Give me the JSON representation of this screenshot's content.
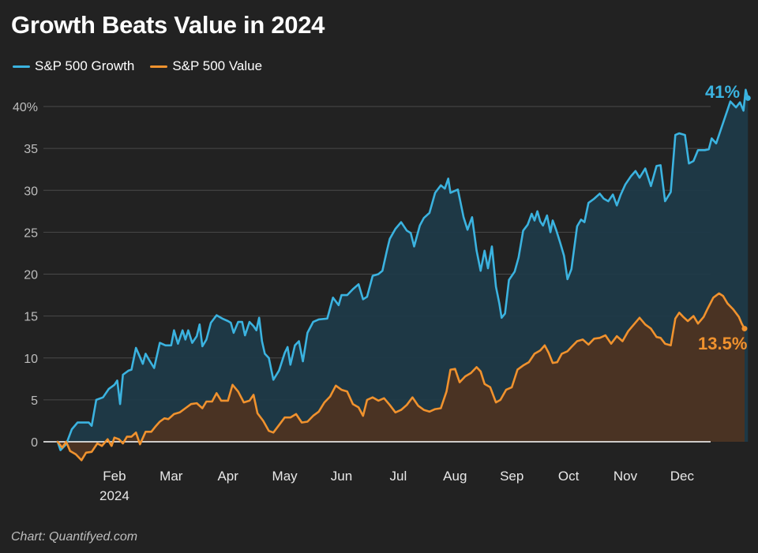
{
  "chart_data": {
    "type": "area",
    "title": "Growth Beats Value in 2024",
    "xlabel": "",
    "ylabel": "",
    "ylim": [
      0,
      40
    ],
    "y_ticks": [
      {
        "value": 0,
        "label": "0"
      },
      {
        "value": 5,
        "label": "5"
      },
      {
        "value": 10,
        "label": "10"
      },
      {
        "value": 15,
        "label": "15"
      },
      {
        "value": 20,
        "label": "20"
      },
      {
        "value": 25,
        "label": "25"
      },
      {
        "value": 30,
        "label": "30"
      },
      {
        "value": 35,
        "label": "35"
      },
      {
        "value": 40,
        "label": "40%"
      }
    ],
    "x_ticks": [
      {
        "month": 1,
        "label": "Feb",
        "sublabel": "2024"
      },
      {
        "month": 2,
        "label": "Mar"
      },
      {
        "month": 3,
        "label": "Apr"
      },
      {
        "month": 4,
        "label": "May"
      },
      {
        "month": 5,
        "label": "Jun"
      },
      {
        "month": 6,
        "label": "Jul"
      },
      {
        "month": 7,
        "label": "Aug"
      },
      {
        "month": 8,
        "label": "Sep"
      },
      {
        "month": 9,
        "label": "Oct"
      },
      {
        "month": 10,
        "label": "Nov"
      },
      {
        "month": 11,
        "label": "Dec"
      }
    ],
    "x_unit": "months since Jan 1, 2024",
    "xlim": [
      0,
      11.7
    ],
    "legend_position": "top-left",
    "series": [
      {
        "name": "S&P 500 Growth",
        "color": "#3bb3e0",
        "fill": "#1f3a48",
        "end_label": "41%",
        "points": [
          [
            0,
            0
          ],
          [
            0.05,
            -1
          ],
          [
            0.15,
            -0.3
          ],
          [
            0.25,
            1.5
          ],
          [
            0.35,
            2.3
          ],
          [
            0.55,
            2.3
          ],
          [
            0.6,
            1.9
          ],
          [
            0.68,
            5
          ],
          [
            0.8,
            5.3
          ],
          [
            0.9,
            6.3
          ],
          [
            1.0,
            6.8
          ],
          [
            1.05,
            7.3
          ],
          [
            1.1,
            4.5
          ],
          [
            1.15,
            8
          ],
          [
            1.25,
            8.5
          ],
          [
            1.3,
            8.6
          ],
          [
            1.38,
            11.2
          ],
          [
            1.45,
            10.1
          ],
          [
            1.5,
            9.3
          ],
          [
            1.55,
            10.5
          ],
          [
            1.6,
            9.9
          ],
          [
            1.7,
            8.8
          ],
          [
            1.8,
            11.8
          ],
          [
            1.9,
            11.5
          ],
          [
            2.0,
            11.5
          ],
          [
            2.05,
            13.3
          ],
          [
            2.12,
            11.7
          ],
          [
            2.2,
            13.3
          ],
          [
            2.25,
            12.2
          ],
          [
            2.3,
            13.3
          ],
          [
            2.37,
            11.8
          ],
          [
            2.45,
            12.6
          ],
          [
            2.5,
            14
          ],
          [
            2.55,
            11.4
          ],
          [
            2.62,
            12.2
          ],
          [
            2.7,
            14.2
          ],
          [
            2.8,
            15.1
          ],
          [
            2.9,
            14.7
          ],
          [
            3.0,
            14.4
          ],
          [
            3.05,
            14.2
          ],
          [
            3.1,
            13
          ],
          [
            3.18,
            14.3
          ],
          [
            3.25,
            14.3
          ],
          [
            3.3,
            12.7
          ],
          [
            3.38,
            14.3
          ],
          [
            3.45,
            13.8
          ],
          [
            3.5,
            13.3
          ],
          [
            3.55,
            14.8
          ],
          [
            3.6,
            12
          ],
          [
            3.65,
            10.5
          ],
          [
            3.72,
            10
          ],
          [
            3.8,
            7.4
          ],
          [
            3.9,
            8.5
          ],
          [
            4.0,
            10.6
          ],
          [
            4.05,
            11.3
          ],
          [
            4.1,
            9.2
          ],
          [
            4.18,
            11.5
          ],
          [
            4.25,
            12
          ],
          [
            4.32,
            9.6
          ],
          [
            4.4,
            13
          ],
          [
            4.5,
            14.3
          ],
          [
            4.6,
            14.6
          ],
          [
            4.75,
            14.7
          ],
          [
            4.85,
            17.2
          ],
          [
            4.95,
            16.3
          ],
          [
            5.0,
            17.5
          ],
          [
            5.1,
            17.5
          ],
          [
            5.2,
            18.2
          ],
          [
            5.3,
            18.8
          ],
          [
            5.38,
            17
          ],
          [
            5.45,
            17.3
          ],
          [
            5.55,
            19.8
          ],
          [
            5.65,
            20
          ],
          [
            5.72,
            20.4
          ],
          [
            5.8,
            22.8
          ],
          [
            5.85,
            24.2
          ],
          [
            5.95,
            25.4
          ],
          [
            6.05,
            26.2
          ],
          [
            6.15,
            25.2
          ],
          [
            6.22,
            24.9
          ],
          [
            6.28,
            23.3
          ],
          [
            6.38,
            25.8
          ],
          [
            6.45,
            26.7
          ],
          [
            6.55,
            27.3
          ],
          [
            6.65,
            29.7
          ],
          [
            6.75,
            30.6
          ],
          [
            6.82,
            30.2
          ],
          [
            6.88,
            31.4
          ],
          [
            6.92,
            29.7
          ],
          [
            7.05,
            30.1
          ],
          [
            7.15,
            26.8
          ],
          [
            7.22,
            25.3
          ],
          [
            7.3,
            26.8
          ],
          [
            7.38,
            22.8
          ],
          [
            7.45,
            20.4
          ],
          [
            7.52,
            22.8
          ],
          [
            7.58,
            20.7
          ],
          [
            7.65,
            23.3
          ],
          [
            7.72,
            18.5
          ],
          [
            7.78,
            16.5
          ],
          [
            7.82,
            14.8
          ],
          [
            7.88,
            15.3
          ],
          [
            7.95,
            19.3
          ],
          [
            8.05,
            20.3
          ],
          [
            8.12,
            22
          ],
          [
            8.2,
            25.2
          ],
          [
            8.28,
            25.9
          ],
          [
            8.35,
            27.2
          ],
          [
            8.4,
            26.4
          ],
          [
            8.45,
            27.5
          ],
          [
            8.5,
            26.3
          ],
          [
            8.55,
            25.8
          ],
          [
            8.62,
            27
          ],
          [
            8.68,
            25
          ],
          [
            8.72,
            26.4
          ],
          [
            8.78,
            25.3
          ],
          [
            8.85,
            23.8
          ],
          [
            8.92,
            22.2
          ],
          [
            8.98,
            19.4
          ],
          [
            9.05,
            20.6
          ],
          [
            9.15,
            25.7
          ],
          [
            9.22,
            26.5
          ],
          [
            9.28,
            26.2
          ],
          [
            9.35,
            28.5
          ],
          [
            9.45,
            29
          ],
          [
            9.55,
            29.6
          ],
          [
            9.62,
            29
          ],
          [
            9.7,
            28.7
          ],
          [
            9.78,
            29.5
          ],
          [
            9.85,
            28.2
          ],
          [
            9.92,
            29.5
          ],
          [
            10.0,
            30.7
          ],
          [
            10.1,
            31.7
          ],
          [
            10.18,
            32.3
          ],
          [
            10.25,
            31.5
          ],
          [
            10.35,
            32.6
          ],
          [
            10.45,
            30.5
          ],
          [
            10.55,
            32.9
          ],
          [
            10.62,
            33
          ],
          [
            10.7,
            28.7
          ],
          [
            10.8,
            29.8
          ],
          [
            10.88,
            36.6
          ],
          [
            10.95,
            36.8
          ],
          [
            11.05,
            36.6
          ],
          [
            11.12,
            33.2
          ],
          [
            11.2,
            33.5
          ],
          [
            11.28,
            34.8
          ],
          [
            11.4,
            34.8
          ],
          [
            11.47,
            34.9
          ],
          [
            11.52,
            36.2
          ],
          [
            11.6,
            35.6
          ],
          [
            11.7,
            37.6
          ],
          [
            11.8,
            39.6
          ],
          [
            11.85,
            40.6
          ],
          [
            11.95,
            39.9
          ],
          [
            12.02,
            40.5
          ],
          [
            12.08,
            39.5
          ],
          [
            12.12,
            42
          ],
          [
            12.16,
            41
          ]
        ]
      },
      {
        "name": "S&P 500 Value",
        "color": "#f0922e",
        "fill": "#4a3323",
        "end_label": "13.5%",
        "points": [
          [
            0,
            0
          ],
          [
            0.08,
            -0.7
          ],
          [
            0.15,
            0
          ],
          [
            0.22,
            -1.1
          ],
          [
            0.32,
            -1.5
          ],
          [
            0.42,
            -2.2
          ],
          [
            0.5,
            -1.3
          ],
          [
            0.6,
            -1.2
          ],
          [
            0.7,
            -0.2
          ],
          [
            0.78,
            -0.5
          ],
          [
            0.88,
            0.3
          ],
          [
            0.95,
            -0.5
          ],
          [
            1.0,
            0.5
          ],
          [
            1.08,
            0.3
          ],
          [
            1.15,
            -0.2
          ],
          [
            1.22,
            0.6
          ],
          [
            1.3,
            0.6
          ],
          [
            1.38,
            1.1
          ],
          [
            1.45,
            -0.3
          ],
          [
            1.55,
            1.2
          ],
          [
            1.65,
            1.2
          ],
          [
            1.72,
            1.8
          ],
          [
            1.8,
            2.4
          ],
          [
            1.88,
            2.8
          ],
          [
            1.95,
            2.7
          ],
          [
            2.05,
            3.3
          ],
          [
            2.15,
            3.5
          ],
          [
            2.25,
            4.0
          ],
          [
            2.35,
            4.5
          ],
          [
            2.45,
            4.6
          ],
          [
            2.55,
            4.0
          ],
          [
            2.62,
            4.8
          ],
          [
            2.72,
            4.8
          ],
          [
            2.8,
            5.8
          ],
          [
            2.88,
            4.9
          ],
          [
            3.0,
            4.9
          ],
          [
            3.08,
            6.8
          ],
          [
            3.18,
            6.0
          ],
          [
            3.28,
            4.7
          ],
          [
            3.38,
            4.9
          ],
          [
            3.45,
            5.6
          ],
          [
            3.52,
            3.4
          ],
          [
            3.62,
            2.5
          ],
          [
            3.72,
            1.3
          ],
          [
            3.8,
            1.1
          ],
          [
            3.9,
            2.0
          ],
          [
            4.0,
            2.9
          ],
          [
            4.1,
            2.9
          ],
          [
            4.2,
            3.3
          ],
          [
            4.3,
            2.3
          ],
          [
            4.4,
            2.4
          ],
          [
            4.5,
            3.1
          ],
          [
            4.6,
            3.6
          ],
          [
            4.7,
            4.7
          ],
          [
            4.8,
            5.4
          ],
          [
            4.9,
            6.7
          ],
          [
            5.0,
            6.2
          ],
          [
            5.1,
            6.0
          ],
          [
            5.2,
            4.5
          ],
          [
            5.3,
            4.1
          ],
          [
            5.38,
            3.1
          ],
          [
            5.45,
            5.0
          ],
          [
            5.55,
            5.3
          ],
          [
            5.65,
            4.9
          ],
          [
            5.75,
            5.2
          ],
          [
            5.85,
            4.4
          ],
          [
            5.95,
            3.5
          ],
          [
            6.05,
            3.8
          ],
          [
            6.15,
            4.4
          ],
          [
            6.25,
            5.3
          ],
          [
            6.35,
            4.3
          ],
          [
            6.45,
            3.8
          ],
          [
            6.55,
            3.6
          ],
          [
            6.65,
            3.9
          ],
          [
            6.75,
            4.0
          ],
          [
            6.85,
            6.0
          ],
          [
            6.92,
            8.6
          ],
          [
            7.0,
            8.7
          ],
          [
            7.08,
            7.1
          ],
          [
            7.18,
            7.8
          ],
          [
            7.28,
            8.2
          ],
          [
            7.38,
            8.9
          ],
          [
            7.45,
            8.4
          ],
          [
            7.52,
            6.9
          ],
          [
            7.62,
            6.5
          ],
          [
            7.72,
            4.7
          ],
          [
            7.8,
            5.0
          ],
          [
            7.9,
            6.2
          ],
          [
            8.0,
            6.5
          ],
          [
            8.1,
            8.6
          ],
          [
            8.2,
            9.1
          ],
          [
            8.3,
            9.5
          ],
          [
            8.4,
            10.5
          ],
          [
            8.5,
            10.9
          ],
          [
            8.58,
            11.5
          ],
          [
            8.65,
            10.6
          ],
          [
            8.72,
            9.4
          ],
          [
            8.8,
            9.5
          ],
          [
            8.88,
            10.5
          ],
          [
            8.98,
            10.8
          ],
          [
            9.05,
            11.3
          ],
          [
            9.15,
            12.0
          ],
          [
            9.25,
            12.2
          ],
          [
            9.35,
            11.6
          ],
          [
            9.45,
            12.3
          ],
          [
            9.55,
            12.4
          ],
          [
            9.65,
            12.7
          ],
          [
            9.75,
            11.7
          ],
          [
            9.85,
            12.6
          ],
          [
            9.95,
            12.0
          ],
          [
            10.05,
            13.2
          ],
          [
            10.15,
            14.0
          ],
          [
            10.25,
            14.8
          ],
          [
            10.35,
            14.0
          ],
          [
            10.45,
            13.5
          ],
          [
            10.55,
            12.5
          ],
          [
            10.62,
            12.4
          ],
          [
            10.7,
            11.7
          ],
          [
            10.8,
            11.5
          ],
          [
            10.88,
            14.7
          ],
          [
            10.95,
            15.4
          ],
          [
            11.02,
            14.9
          ],
          [
            11.1,
            14.4
          ],
          [
            11.2,
            15.0
          ],
          [
            11.28,
            14.1
          ],
          [
            11.38,
            14.9
          ],
          [
            11.45,
            15.9
          ],
          [
            11.55,
            17.2
          ],
          [
            11.65,
            17.7
          ],
          [
            11.72,
            17.4
          ],
          [
            11.8,
            16.5
          ],
          [
            11.9,
            15.8
          ],
          [
            12.0,
            14.9
          ],
          [
            12.05,
            14.1
          ],
          [
            12.1,
            13.5
          ]
        ]
      }
    ]
  },
  "source_note": "Chart: Quantifyed.com"
}
